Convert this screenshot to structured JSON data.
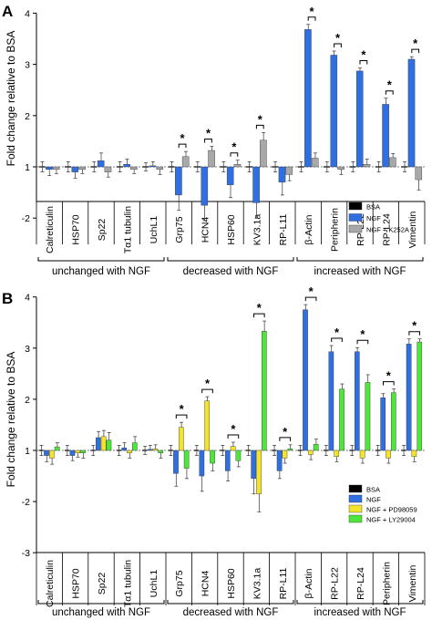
{
  "colors": {
    "bsa": "#000000",
    "ngf": "#2f6fe0",
    "k252a": "#a8a8a8",
    "pd98059": "#f2e42a",
    "ly29004": "#4ee63a"
  },
  "chart_data": [
    {
      "panel": "A",
      "type": "bar",
      "ylabel": "Fold change relative to BSA",
      "ylim": [
        -2,
        4
      ],
      "yticks": [
        "-2",
        "1",
        "2",
        "3",
        "4"
      ],
      "categories": [
        "Calreticulin",
        "HSP70",
        "Sp22",
        "Tα1 tubulin",
        "UchL1",
        "Grp75",
        "HCN4",
        "HSP60",
        "KV3.1a",
        "RP-L11",
        "β-Actin",
        "Peripherin",
        "RP-L22",
        "RP-L24",
        "Vimentin"
      ],
      "series": [
        {
          "name": "BSA",
          "values": [
            1,
            1,
            1,
            1,
            1,
            1,
            1,
            1,
            1,
            1,
            1,
            1,
            1,
            1,
            1
          ],
          "errors": [
            0.1,
            0.1,
            0.1,
            0.1,
            0.08,
            0.1,
            0.1,
            0.1,
            0.1,
            0.1,
            0.1,
            0.1,
            0.1,
            0.1,
            0.1
          ]
        },
        {
          "name": "NGF",
          "values": [
            -1.05,
            -1.1,
            1.12,
            1.05,
            1.02,
            -1.55,
            -1.75,
            -1.35,
            -1.7,
            -1.3,
            3.68,
            3.18,
            2.87,
            2.22,
            3.1
          ],
          "errors": [
            0.12,
            0.12,
            0.15,
            0.1,
            0.08,
            0.3,
            0.3,
            0.25,
            0.3,
            0.25,
            0.1,
            0.08,
            0.06,
            0.12,
            0.05
          ]
        },
        {
          "name": "NGF + K252A",
          "values": [
            -1.05,
            -1.05,
            -1.1,
            -1.05,
            -1.05,
            1.2,
            1.32,
            1.05,
            1.52,
            -1.15,
            1.17,
            -1.05,
            1.05,
            1.18,
            -1.25
          ],
          "errors": [
            0.08,
            0.08,
            0.1,
            0.08,
            0.1,
            0.1,
            0.08,
            0.08,
            0.15,
            0.12,
            0.1,
            0.1,
            0.1,
            0.08,
            0.2
          ]
        }
      ],
      "significant": [
        "Grp75",
        "HCN4",
        "HSP60",
        "KV3.1a",
        "β-Actin",
        "Peripherin",
        "RP-L22",
        "RP-L24",
        "Vimentin"
      ],
      "star": "*",
      "legend": {
        "placement": "bottom-right",
        "entries": [
          "BSA",
          "NGF",
          "NGF + K252A"
        ]
      },
      "groups": [
        {
          "label": "unchanged with NGF",
          "from": 0,
          "to": 4
        },
        {
          "label": "decreased with NGF",
          "from": 5,
          "to": 9
        },
        {
          "label": "increased with NGF",
          "from": 10,
          "to": 14
        }
      ]
    },
    {
      "panel": "B",
      "type": "bar",
      "ylabel": "Fold change relative to BSA",
      "ylim": [
        -3,
        4
      ],
      "yticks": [
        "-3",
        "-2",
        "1",
        "2",
        "3",
        "4"
      ],
      "categories": [
        "Calreticulin",
        "HSP70",
        "Sp22",
        "Tα1 tubulin",
        "UchL1",
        "Grp75",
        "HCN4",
        "HSP60",
        "KV3.1a",
        "RP-L11",
        "β-Actin",
        "RP-L22",
        "RP-L24",
        "Peripherin",
        "Vimentin"
      ],
      "series": [
        {
          "name": "BSA",
          "values": [
            1,
            1,
            1,
            1,
            1,
            1,
            1,
            1,
            1,
            1,
            1,
            1,
            1,
            1,
            1
          ],
          "errors": [
            0.1,
            0.1,
            0.1,
            0.1,
            0.08,
            0.1,
            0.1,
            0.1,
            0.1,
            0.1,
            0.1,
            0.1,
            0.1,
            0.1,
            0.1
          ]
        },
        {
          "name": "NGF",
          "values": [
            -1.1,
            -1.1,
            1.25,
            1.05,
            1.02,
            -1.45,
            -1.5,
            -1.4,
            -1.55,
            -1.4,
            3.75,
            2.93,
            2.93,
            2.03,
            3.08
          ],
          "errors": [
            0.12,
            0.1,
            0.12,
            0.1,
            0.08,
            0.25,
            0.3,
            0.2,
            0.3,
            0.15,
            0.1,
            0.12,
            0.08,
            0.08,
            0.1
          ]
        },
        {
          "name": "NGF + PD98059",
          "values": [
            -1.15,
            -1.05,
            1.27,
            -1.05,
            1.03,
            1.45,
            1.97,
            1.08,
            -1.85,
            -1.15,
            -1.08,
            -1.12,
            -1.15,
            -1.15,
            -1.12
          ],
          "errors": [
            0.12,
            0.08,
            0.12,
            0.1,
            0.08,
            0.1,
            0.08,
            0.08,
            0.35,
            0.1,
            0.1,
            0.1,
            0.1,
            0.1,
            0.1
          ]
        },
        {
          "name": "NGF + LY29004",
          "values": [
            1.07,
            -1.05,
            1.2,
            1.15,
            -1.05,
            -1.35,
            -1.25,
            -1.2,
            3.33,
            1.03,
            1.12,
            2.2,
            2.33,
            2.13,
            3.12
          ],
          "errors": [
            0.08,
            0.1,
            0.15,
            0.12,
            0.1,
            0.2,
            0.15,
            0.12,
            0.2,
            0.08,
            0.1,
            0.1,
            0.15,
            0.07,
            0.06
          ]
        }
      ],
      "significant": [
        "Grp75",
        "HCN4",
        "HSP60",
        "KV3.1a",
        "RP-L11",
        "β-Actin",
        "RP-L22",
        "RP-L24",
        "Peripherin",
        "Vimentin"
      ],
      "star": "*",
      "legend": {
        "placement": "bottom-right",
        "entries": [
          "BSA",
          "NGF",
          "NGF + PD98059",
          "NGF + LY29004"
        ]
      },
      "groups": [
        {
          "label": "unchanged with NGF",
          "from": 0,
          "to": 4
        },
        {
          "label": "decreased with NGF",
          "from": 5,
          "to": 9
        },
        {
          "label": "increased with NGF",
          "from": 10,
          "to": 14
        }
      ]
    }
  ]
}
